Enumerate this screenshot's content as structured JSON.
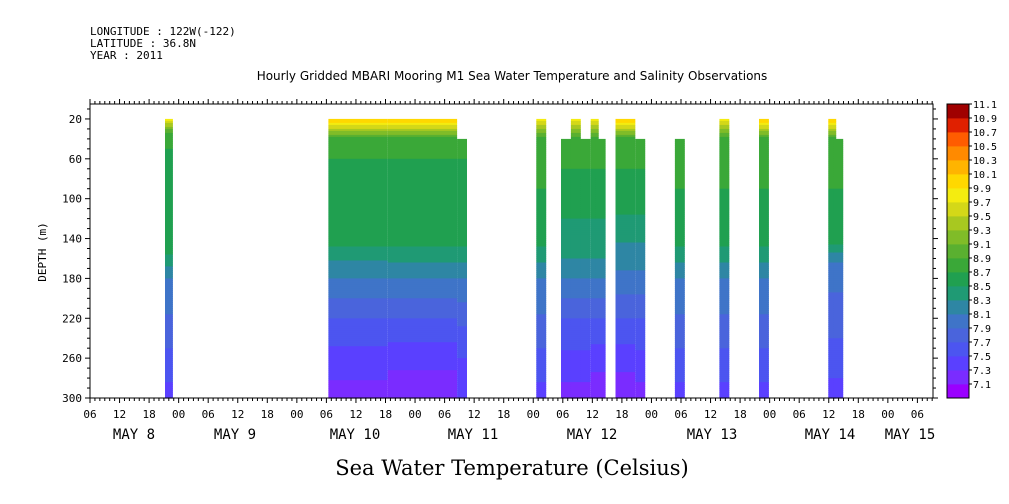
{
  "header": {
    "longitude": "LONGITUDE : 122W(-122)",
    "latitude": "LATITUDE : 36.8N",
    "year": "YEAR : 2011"
  },
  "chart_data": {
    "type": "heatmap",
    "title": "Hourly Gridded MBARI Mooring M1 Sea Water Temperature and Salinity Observations",
    "xlabel": "",
    "ylabel": "DEPTH (m)",
    "colorbar_label": "Sea Water Temperature (Celsius)",
    "x_range_hours": [
      0,
      168
    ],
    "x_tick_labels": [
      "06",
      "12",
      "18",
      "00",
      "06",
      "12",
      "18",
      "00",
      "06",
      "12",
      "18",
      "00",
      "06",
      "12",
      "18",
      "00",
      "06",
      "12",
      "18",
      "00",
      "06",
      "12",
      "18",
      "00",
      "06",
      "12",
      "18",
      "00",
      "06",
      "12",
      "18",
      "00",
      "06"
    ],
    "day_labels": [
      "MAY 8",
      "MAY 9",
      "MAY 10",
      "MAY 11",
      "MAY 12",
      "MAY 13",
      "MAY 14",
      "MAY 15"
    ],
    "ylim": [
      300,
      5
    ],
    "y_ticks": [
      20,
      60,
      100,
      140,
      180,
      220,
      260,
      300
    ],
    "colorbar": {
      "levels": [
        7.1,
        7.3,
        7.5,
        7.7,
        7.9,
        8.1,
        8.3,
        8.5,
        8.7,
        8.9,
        9.1,
        9.3,
        9.5,
        9.7,
        9.9,
        10.1,
        10.3,
        10.5,
        10.7,
        10.9,
        11.1
      ],
      "colors": [
        "#9a00ff",
        "#7a2cff",
        "#5a40ff",
        "#4c55f0",
        "#4a64dc",
        "#3f74c8",
        "#2e86a4",
        "#1f9a74",
        "#20a050",
        "#3aa838",
        "#5ab030",
        "#80bc28",
        "#a8c820",
        "#d4d818",
        "#f4ec10",
        "#ffd800",
        "#ffb400",
        "#ff8a00",
        "#ff5c00",
        "#e02000",
        "#a00000"
      ]
    },
    "columns": [
      {
        "start": 0,
        "end": 1,
        "top": 20,
        "profile": [
          [
            20,
            10.0
          ],
          [
            35,
            9.0
          ],
          [
            50,
            8.9
          ],
          [
            150,
            8.8
          ],
          [
            180,
            8.3
          ],
          [
            250,
            7.9
          ],
          [
            300,
            7.6
          ]
        ]
      },
      {
        "start": 33,
        "end": 45,
        "top": 20,
        "profile": [
          [
            20,
            10.3
          ],
          [
            40,
            9.0
          ],
          [
            60,
            8.9
          ],
          [
            140,
            8.8
          ],
          [
            170,
            8.4
          ],
          [
            230,
            7.8
          ],
          [
            300,
            7.4
          ]
        ]
      },
      {
        "start": 45,
        "end": 59,
        "top": 20,
        "profile": [
          [
            20,
            10.3
          ],
          [
            40,
            9.0
          ],
          [
            60,
            8.9
          ],
          [
            140,
            8.8
          ],
          [
            180,
            8.3
          ],
          [
            230,
            7.8
          ],
          [
            300,
            7.3
          ]
        ]
      },
      {
        "start": 59,
        "end": 61,
        "top": 40,
        "profile": [
          [
            40,
            9.0
          ],
          [
            60,
            8.9
          ],
          [
            140,
            8.8
          ],
          [
            180,
            8.3
          ],
          [
            240,
            7.8
          ],
          [
            300,
            7.5
          ]
        ]
      },
      {
        "start": 75,
        "end": 77,
        "top": 20,
        "profile": [
          [
            20,
            10.0
          ],
          [
            40,
            9.0
          ],
          [
            140,
            8.8
          ],
          [
            180,
            8.3
          ],
          [
            250,
            7.9
          ],
          [
            300,
            7.6
          ]
        ]
      },
      {
        "start": 80,
        "end": 86,
        "top": 40,
        "profile": [
          [
            40,
            9.0
          ],
          [
            100,
            8.8
          ],
          [
            160,
            8.5
          ],
          [
            220,
            7.9
          ],
          [
            300,
            7.4
          ]
        ]
      },
      {
        "start": 82,
        "end": 84,
        "top": 20,
        "profile": [
          [
            20,
            10.0
          ],
          [
            40,
            9.0
          ],
          [
            100,
            8.8
          ],
          [
            160,
            8.5
          ],
          [
            220,
            7.9
          ],
          [
            300,
            7.4
          ]
        ]
      },
      {
        "start": 86,
        "end": 87,
        "top": 20,
        "profile": [
          [
            20,
            10.0
          ],
          [
            40,
            9.0
          ],
          [
            100,
            8.8
          ],
          [
            160,
            8.5
          ],
          [
            220,
            7.9
          ],
          [
            300,
            7.3
          ]
        ]
      },
      {
        "start": 87,
        "end": 89,
        "top": 40,
        "profile": [
          [
            40,
            9.0
          ],
          [
            100,
            8.8
          ],
          [
            160,
            8.5
          ],
          [
            220,
            7.9
          ],
          [
            300,
            7.3
          ]
        ]
      },
      {
        "start": 91,
        "end": 95,
        "top": 20,
        "profile": [
          [
            20,
            10.3
          ],
          [
            40,
            9.0
          ],
          [
            100,
            8.8
          ],
          [
            160,
            8.4
          ],
          [
            220,
            7.9
          ],
          [
            300,
            7.3
          ]
        ]
      },
      {
        "start": 95,
        "end": 97,
        "top": 40,
        "profile": [
          [
            40,
            9.0
          ],
          [
            100,
            8.8
          ],
          [
            160,
            8.4
          ],
          [
            220,
            7.9
          ],
          [
            300,
            7.4
          ]
        ]
      },
      {
        "start": 103,
        "end": 105,
        "top": 40,
        "profile": [
          [
            40,
            9.0
          ],
          [
            140,
            8.8
          ],
          [
            180,
            8.3
          ],
          [
            250,
            7.9
          ],
          [
            300,
            7.6
          ]
        ]
      },
      {
        "start": 112,
        "end": 114,
        "top": 20,
        "profile": [
          [
            20,
            10.0
          ],
          [
            40,
            9.0
          ],
          [
            140,
            8.8
          ],
          [
            180,
            8.3
          ],
          [
            250,
            7.9
          ],
          [
            300,
            7.6
          ]
        ]
      },
      {
        "start": 120,
        "end": 122,
        "top": 20,
        "profile": [
          [
            20,
            10.3
          ],
          [
            40,
            9.0
          ],
          [
            140,
            8.8
          ],
          [
            180,
            8.3
          ],
          [
            250,
            7.9
          ],
          [
            300,
            7.6
          ]
        ]
      },
      {
        "start": 134,
        "end": 135,
        "top": 20,
        "profile": [
          [
            20,
            10.3
          ],
          [
            40,
            9.0
          ],
          [
            140,
            8.8
          ],
          [
            170,
            8.2
          ],
          [
            240,
            7.9
          ],
          [
            300,
            7.6
          ]
        ]
      },
      {
        "start": 135,
        "end": 137,
        "top": 40,
        "profile": [
          [
            40,
            9.0
          ],
          [
            140,
            8.8
          ],
          [
            170,
            8.2
          ],
          [
            240,
            7.9
          ],
          [
            300,
            7.6
          ]
        ]
      }
    ]
  },
  "colors": {
    "frame": "#000000",
    "background": "#ffffff"
  }
}
